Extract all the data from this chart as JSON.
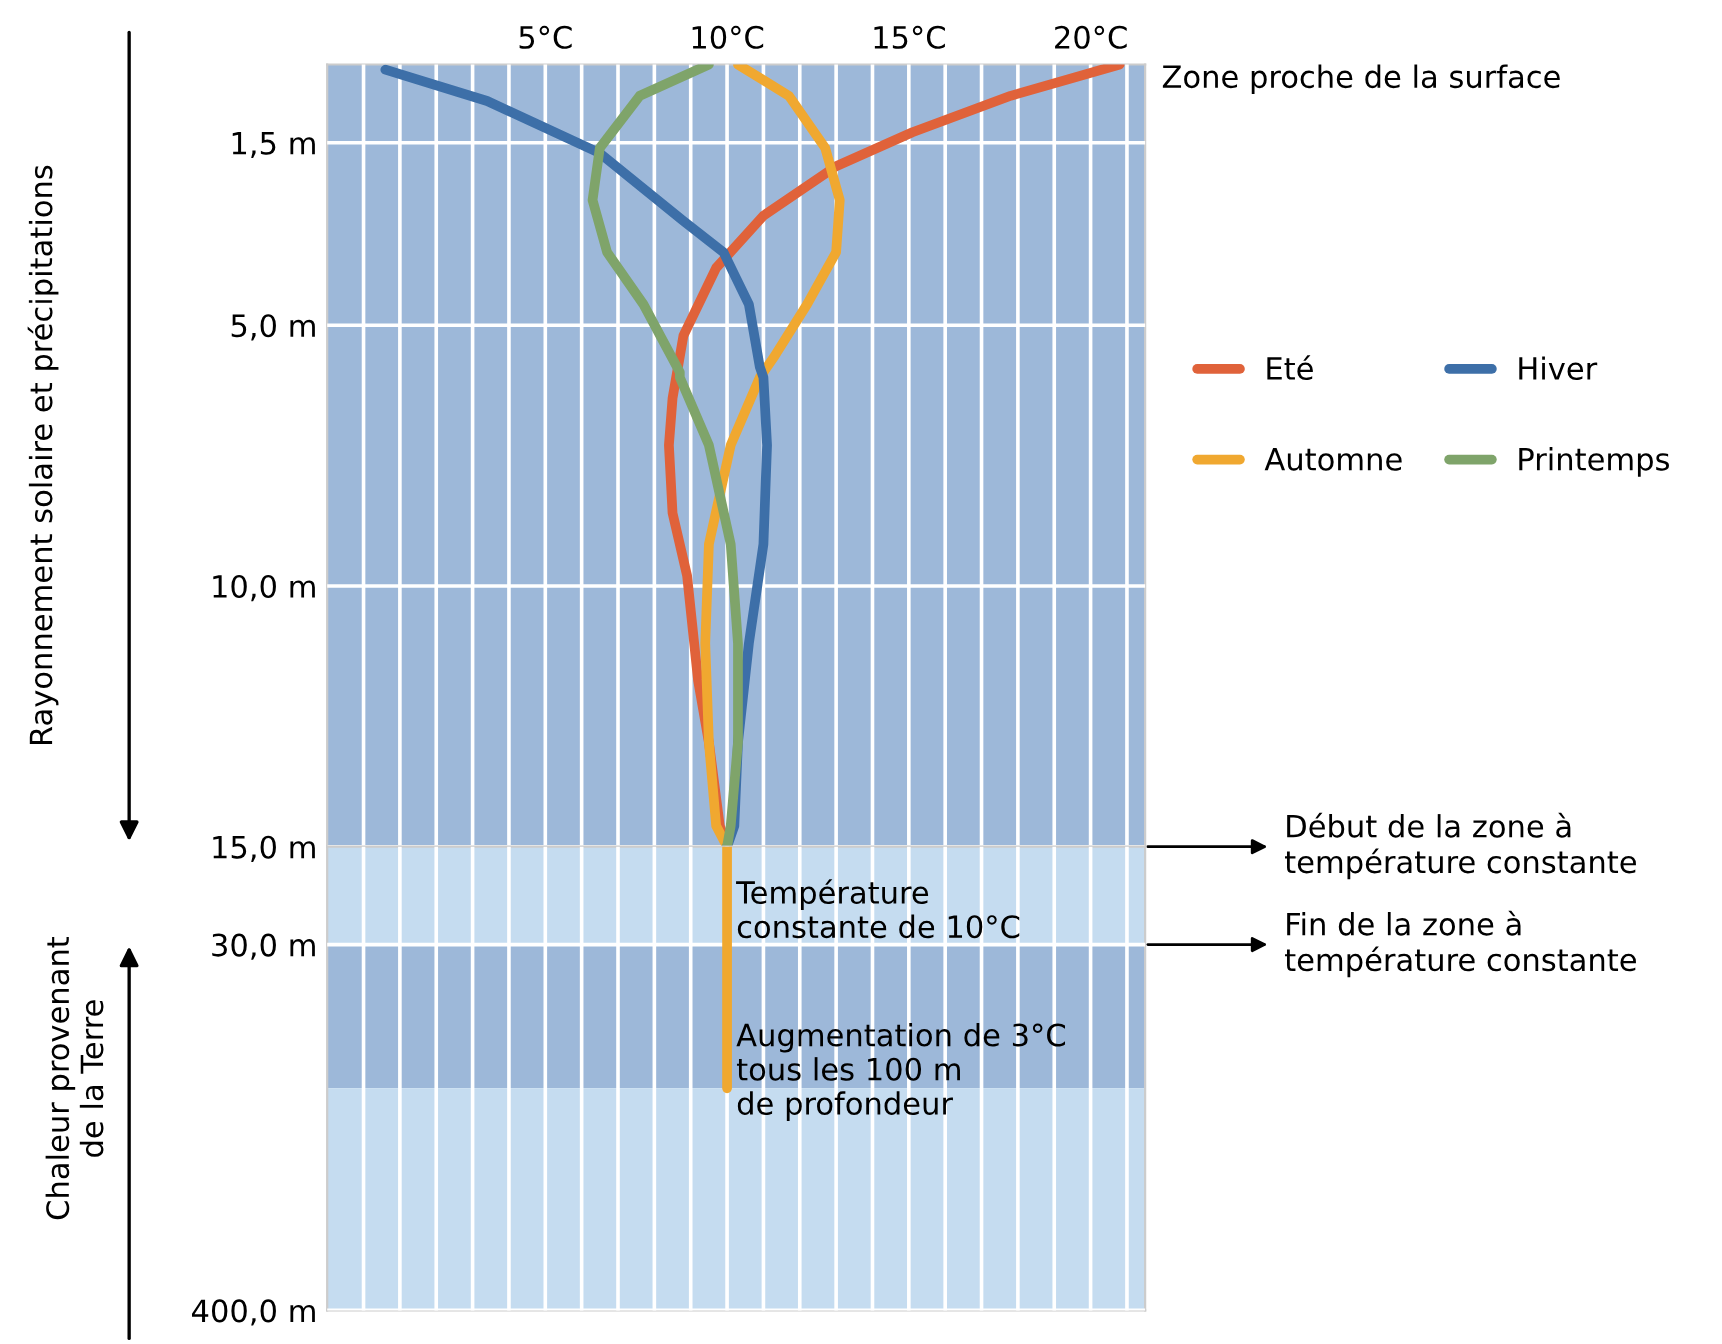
{
  "chart_data": [
    {
      "type": "line",
      "ylabel": "Rayonnement solaire et précipitations",
      "xlim": [
        -1,
        21.5
      ],
      "ylim": [
        15,
        0
      ],
      "xticks": [
        {
          "value": 0,
          "label": null
        },
        {
          "value": 1,
          "label": null
        },
        {
          "value": 2,
          "label": null
        },
        {
          "value": 3,
          "label": null
        },
        {
          "value": 4,
          "label": null
        },
        {
          "value": 5,
          "label": "5°C"
        },
        {
          "value": 6,
          "label": null
        },
        {
          "value": 7,
          "label": null
        },
        {
          "value": 8,
          "label": null
        },
        {
          "value": 9,
          "label": null
        },
        {
          "value": 10,
          "label": "10°C"
        },
        {
          "value": 11,
          "label": null
        },
        {
          "value": 12,
          "label": null
        },
        {
          "value": 13,
          "label": null
        },
        {
          "value": 14,
          "label": null
        },
        {
          "value": 15,
          "label": "15°C"
        },
        {
          "value": 16,
          "label": null
        },
        {
          "value": 17,
          "label": null
        },
        {
          "value": 18,
          "label": null
        },
        {
          "value": 19,
          "label": null
        },
        {
          "value": 20,
          "label": "20°C"
        },
        {
          "value": 21,
          "label": null
        }
      ],
      "yticks": [
        {
          "value": 1.5,
          "label": "1,5 m"
        },
        {
          "value": 5,
          "label": "5,0 m"
        },
        {
          "value": 10,
          "label": "10,0 m"
        },
        {
          "value": 15,
          "label": "15,0 m"
        }
      ],
      "grid": true,
      "legend": "right",
      "bands": [
        {
          "axis": "y",
          "from": 0,
          "to": 15,
          "color": "#9db8d9"
        }
      ],
      "series": [
        {
          "name": "Eté",
          "color": "#e0623a",
          "x": [
            20.8,
            17.8,
            15.1,
            13.0,
            11.0,
            9.7,
            8.8,
            8.5,
            8.4,
            8.5,
            8.9,
            9.2,
            9.5,
            9.8,
            10
          ],
          "values": [
            0,
            0.6,
            1.3,
            1.95,
            2.9,
            3.9,
            5.2,
            6.4,
            7.3,
            8.6,
            9.8,
            11.8,
            13.0,
            14.6,
            15
          ]
        },
        {
          "name": "Automne",
          "color": "#f0a830",
          "x": [
            10.3,
            11.7,
            12.7,
            13.1,
            13.0,
            12.2,
            11.3,
            10.9,
            10.1,
            9.5,
            9.4,
            9.5,
            9.7,
            10
          ],
          "values": [
            0,
            0.6,
            1.6,
            2.6,
            3.6,
            4.6,
            5.6,
            6.0,
            7.3,
            9.2,
            11.1,
            13.0,
            14.6,
            15
          ]
        },
        {
          "name": "Hiver",
          "color": "#3d6fa8",
          "x": [
            0.6,
            3.4,
            6.5,
            8.8,
            9.9,
            10.6,
            10.9,
            11.0,
            11.1,
            11.0,
            10.6,
            10.3,
            10.2,
            10
          ],
          "values": [
            0.1,
            0.7,
            1.7,
            3.0,
            3.6,
            4.6,
            5.8,
            6.0,
            7.3,
            9.2,
            11.1,
            13.0,
            14.6,
            15
          ]
        },
        {
          "name": "Printemps",
          "color": "#7fa46a",
          "x": [
            9.5,
            7.6,
            6.5,
            6.3,
            6.7,
            7.7,
            8.7,
            8.7,
            9.5,
            10.1,
            10.3,
            10.3,
            10.1,
            10
          ],
          "values": [
            0,
            0.6,
            1.6,
            2.6,
            3.6,
            4.6,
            5.9,
            6.0,
            7.3,
            9.2,
            11.1,
            13.0,
            14.6,
            15
          ]
        }
      ],
      "annotations": [
        "Zone proche de la surface",
        {
          "text": "Début de la zone à température constante",
          "x": 21.5,
          "y": 15
        }
      ]
    },
    {
      "type": "line",
      "ylabel": "Chaleur provenant\nde la Terre",
      "xlim": [
        -1,
        21.5
      ],
      "ylim": [
        400,
        15
      ],
      "log": "y",
      "xticks": [
        {
          "value": 0,
          "label": null
        },
        {
          "value": 1,
          "label": null
        },
        {
          "value": 2,
          "label": null
        },
        {
          "value": 3,
          "label": null
        },
        {
          "value": 4,
          "label": null
        },
        {
          "value": 5,
          "label": null
        },
        {
          "value": 6,
          "label": null
        },
        {
          "value": 7,
          "label": null
        },
        {
          "value": 8,
          "label": null
        },
        {
          "value": 9,
          "label": null
        },
        {
          "value": 10,
          "label": null
        },
        {
          "value": 11,
          "label": null
        },
        {
          "value": 12,
          "label": null
        },
        {
          "value": 13,
          "label": null
        },
        {
          "value": 14,
          "label": null
        },
        {
          "value": 15,
          "label": null
        },
        {
          "value": 16,
          "label": null
        },
        {
          "value": 17,
          "label": null
        },
        {
          "value": 18,
          "label": null
        },
        {
          "value": 19,
          "label": null
        },
        {
          "value": 20,
          "label": null
        },
        {
          "value": 21,
          "label": null
        }
      ],
      "yticks": [
        {
          "value": 30,
          "label": "30,0 m"
        },
        {
          "value": 400,
          "label": "400,0 m"
        }
      ],
      "grid": true,
      "tick_labels": "y",
      "bands": [
        {
          "axis": "y",
          "from": 15,
          "to": 30,
          "color": "#c5dcf0"
        },
        {
          "axis": "y",
          "from": 30,
          "to": 83,
          "color": "#9db8d9"
        },
        {
          "axis": "y",
          "from": 83,
          "to": 400,
          "color": "#c5dcf0"
        }
      ],
      "series": [
        {
          "color": "#f0a830",
          "x": [
            10,
            10
          ],
          "values": [
            15,
            83
          ]
        }
      ],
      "annotations": [
        "Température\nconstante de 10°C",
        "Augmentation de 3°C\ntous les 100 m\nde profondeur",
        {
          "text": "Fin de la zone à température constante",
          "x": 21.5,
          "y": 30
        }
      ]
    }
  ]
}
